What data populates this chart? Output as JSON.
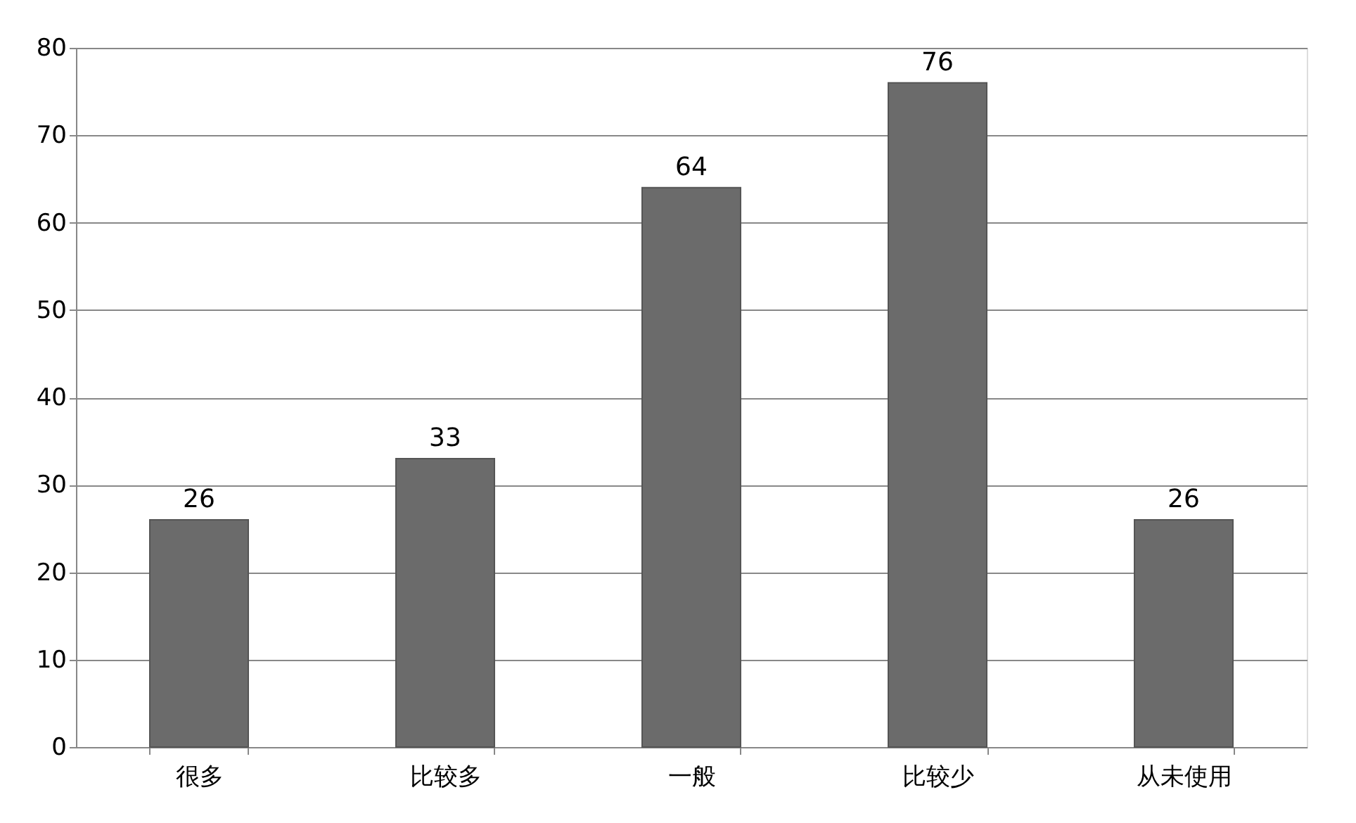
{
  "chart_data": {
    "type": "bar",
    "categories": [
      "很多",
      "比较多",
      "一般",
      "比较少",
      "从未使用"
    ],
    "values": [
      26,
      33,
      64,
      76,
      26
    ],
    "color": "#6b6b6b",
    "ylim": [
      0,
      80
    ],
    "yticks": [
      0,
      10,
      20,
      30,
      40,
      50,
      60,
      70,
      80
    ],
    "grid": "y",
    "data_labels": true
  }
}
